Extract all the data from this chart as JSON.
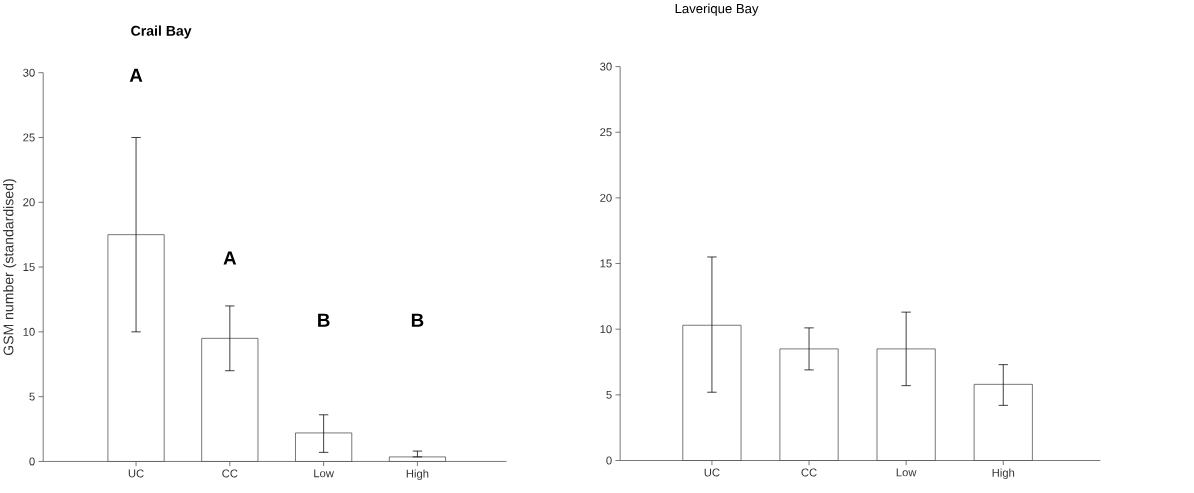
{
  "chart_data": [
    {
      "type": "bar",
      "title": "Crail Bay",
      "ylabel": "GSM number (standardised)",
      "categories": [
        "UC",
        "CC",
        "Low",
        "High"
      ],
      "values": [
        17.5,
        9.5,
        2.2,
        0.35
      ],
      "errors": [
        [
          10,
          25
        ],
        [
          7,
          12
        ],
        [
          0.7,
          3.6
        ],
        [
          0.35,
          0.8
        ]
      ],
      "color": "#ffffff",
      "ylim": [
        0,
        30
      ],
      "yticks": [
        0,
        5,
        10,
        15,
        20,
        25,
        30
      ],
      "annotations": [
        "A",
        "A",
        "B",
        "B"
      ]
    },
    {
      "type": "bar",
      "title": "Laverique Bay",
      "categories": [
        "UC",
        "CC",
        "Low",
        "High"
      ],
      "values": [
        10.3,
        8.5,
        8.5,
        5.8
      ],
      "errors": [
        [
          5.2,
          15.5
        ],
        [
          6.9,
          10.1
        ],
        [
          5.7,
          11.3
        ],
        [
          4.2,
          7.3
        ]
      ],
      "color": "#ffffff",
      "ylim": [
        0,
        30
      ],
      "yticks": [
        0,
        5,
        10,
        15,
        20,
        25,
        30
      ]
    }
  ]
}
